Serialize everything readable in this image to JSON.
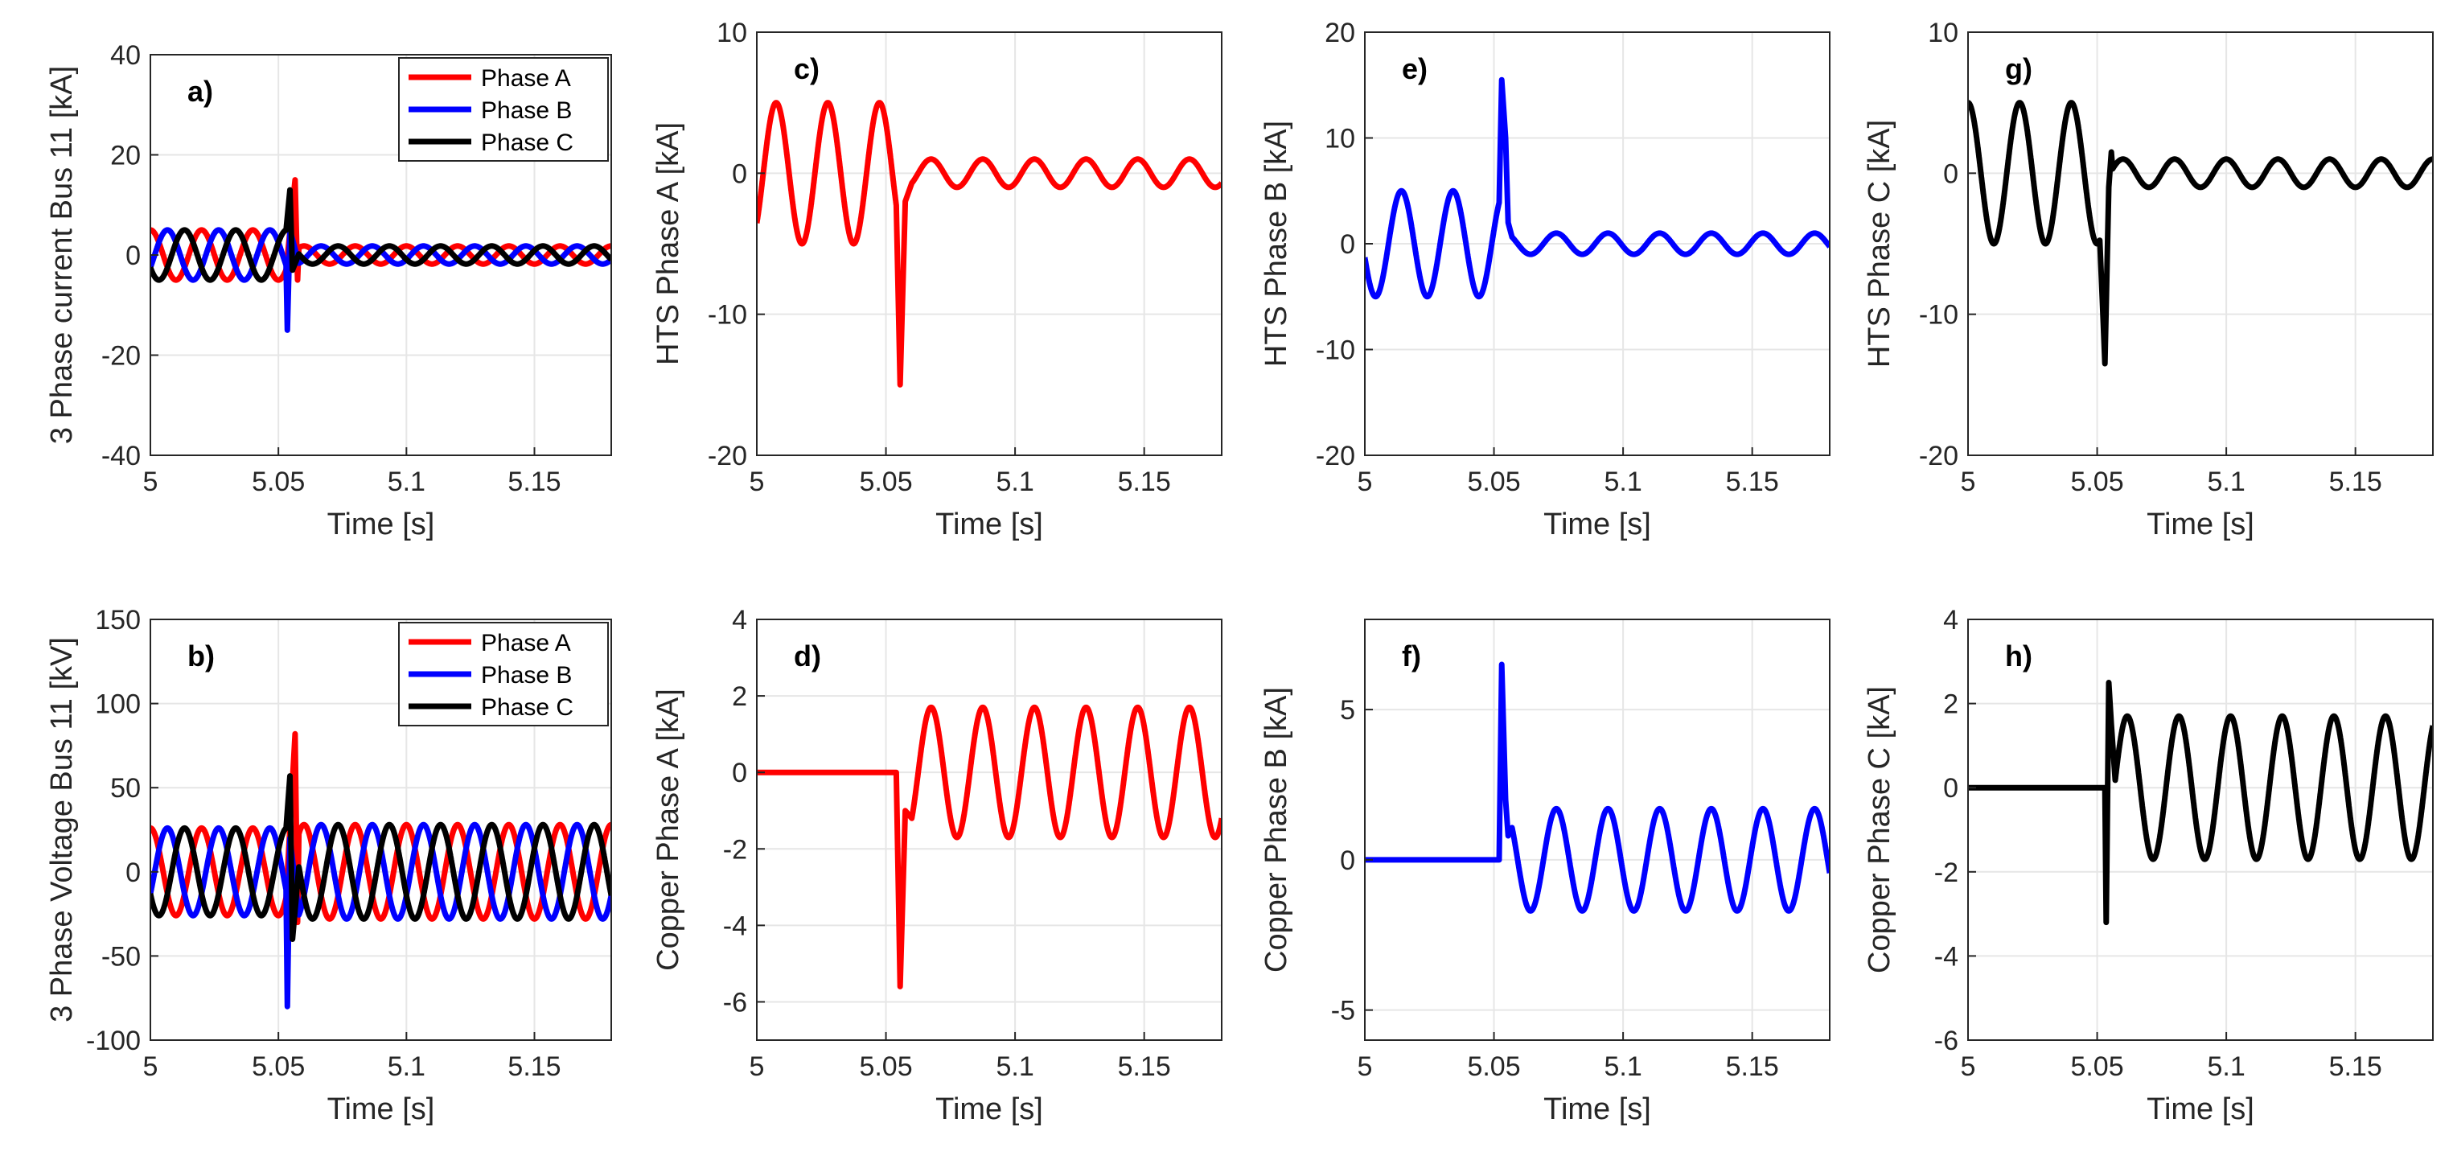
{
  "figure": {
    "background": "#ffffff",
    "colors": {
      "phase_a": "#ff0000",
      "phase_b": "#0000ff",
      "phase_c": "#000000",
      "grid": "#e6e6e6",
      "axis": "#262626"
    }
  },
  "chart_data": [
    {
      "id": "a",
      "type": "line",
      "panel_label": "a)",
      "xlabel": "Time [s]",
      "ylabel": "3 Phase current Bus 11 [kA]",
      "xlim": [
        5,
        5.18
      ],
      "ylim": [
        -40,
        40
      ],
      "xticks": [
        5,
        5.05,
        5.1,
        5.15
      ],
      "xtick_labels": [
        "5",
        "5.05",
        "5.1",
        "5.15"
      ],
      "yticks": [
        -40,
        -20,
        0,
        20,
        40
      ],
      "ytick_labels": [
        "-40",
        "-20",
        "0",
        "20",
        "40"
      ],
      "grid": true,
      "legend": "top-right",
      "series": [
        {
          "name": "Phase A",
          "color": "#ff0000",
          "fault_start": 5.053,
          "fault_end": 5.058,
          "pre_amp": 5,
          "post_amp": 1.8,
          "phase_deg": 90,
          "spikes": [
            [
              5.0565,
              15
            ],
            [
              5.0575,
              -5
            ]
          ]
        },
        {
          "name": "Phase B",
          "color": "#0000ff",
          "fault_start": 5.053,
          "fault_end": 5.058,
          "pre_amp": 5,
          "post_amp": 1.8,
          "phase_deg": -30,
          "spikes": [
            [
              5.0535,
              -15
            ],
            [
              5.0545,
              5
            ]
          ]
        },
        {
          "name": "Phase C",
          "color": "#000000",
          "fault_start": 5.053,
          "fault_end": 5.058,
          "pre_amp": 5,
          "post_amp": 1.8,
          "phase_deg": 210,
          "spikes": [
            [
              5.0545,
              13
            ],
            [
              5.0555,
              -3
            ]
          ]
        }
      ]
    },
    {
      "id": "b",
      "type": "line",
      "panel_label": "b)",
      "xlabel": "Time [s]",
      "ylabel": "3 Phase Voltage  Bus 11 [kV]",
      "xlim": [
        5,
        5.18
      ],
      "ylim": [
        -100,
        150
      ],
      "xticks": [
        5,
        5.05,
        5.1,
        5.15
      ],
      "xtick_labels": [
        "5",
        "5.05",
        "5.1",
        "5.15"
      ],
      "yticks": [
        -100,
        -50,
        0,
        50,
        100,
        150
      ],
      "ytick_labels": [
        "-100",
        "-50",
        "0",
        "50",
        "100",
        "150"
      ],
      "grid": true,
      "legend": "top-right",
      "series": [
        {
          "name": "Phase A",
          "color": "#ff0000",
          "fault_start": 5.053,
          "fault_end": 5.058,
          "pre_amp": 26,
          "post_amp": 28,
          "phase_deg": 90,
          "spikes": [
            [
              5.0565,
              82
            ],
            [
              5.0575,
              -30
            ]
          ]
        },
        {
          "name": "Phase B",
          "color": "#0000ff",
          "fault_start": 5.053,
          "fault_end": 5.058,
          "pre_amp": 26,
          "post_amp": 28,
          "phase_deg": -30,
          "spikes": [
            [
              5.0535,
              -80
            ],
            [
              5.0545,
              20
            ]
          ]
        },
        {
          "name": "Phase C",
          "color": "#000000",
          "fault_start": 5.053,
          "fault_end": 5.058,
          "pre_amp": 26,
          "post_amp": 28,
          "phase_deg": 210,
          "spikes": [
            [
              5.0545,
              57
            ],
            [
              5.0555,
              -40
            ]
          ]
        }
      ]
    },
    {
      "id": "c",
      "type": "line",
      "panel_label": "c)",
      "xlabel": "Time [s]",
      "ylabel": "HTS Phase A [kA]",
      "xlim": [
        5,
        5.18
      ],
      "ylim": [
        -20,
        10
      ],
      "xticks": [
        5,
        5.05,
        5.1,
        5.15
      ],
      "xtick_labels": [
        "5",
        "5.05",
        "5.1",
        "5.15"
      ],
      "yticks": [
        -20,
        -10,
        0,
        10
      ],
      "ytick_labels": [
        "-20",
        "-10",
        "0",
        "10"
      ],
      "grid": true,
      "series": [
        {
          "name": "",
          "color": "#ff0000",
          "fault_start": 5.054,
          "fault_end": 5.06,
          "pre_amp": 5,
          "post_amp": 1,
          "phase_deg": -45,
          "spikes": [
            [
              5.0555,
              -15
            ],
            [
              5.0575,
              -2
            ]
          ]
        }
      ]
    },
    {
      "id": "d",
      "type": "line",
      "panel_label": "d)",
      "xlabel": "Time [s]",
      "ylabel": "Copper Phase A [kA]",
      "xlim": [
        5,
        5.18
      ],
      "ylim": [
        -7,
        4
      ],
      "xticks": [
        5,
        5.05,
        5.1,
        5.15
      ],
      "xtick_labels": [
        "5",
        "5.05",
        "5.1",
        "5.15"
      ],
      "yticks": [
        -6,
        -4,
        -2,
        0,
        2,
        4
      ],
      "ytick_labels": [
        "-6",
        "-4",
        "-2",
        "0",
        "2",
        "4"
      ],
      "grid": true,
      "series": [
        {
          "name": "",
          "color": "#ff0000",
          "fault_start": 5.054,
          "fault_end": 5.06,
          "pre_amp": 0,
          "post_amp": 1.7,
          "phase_deg": -45,
          "spikes": [
            [
              5.0555,
              -5.6
            ],
            [
              5.0575,
              -1
            ]
          ]
        }
      ]
    },
    {
      "id": "e",
      "type": "line",
      "panel_label": "e)",
      "xlabel": "Time [s]",
      "ylabel": "HTS Phase B [kA]",
      "xlim": [
        5,
        5.18
      ],
      "ylim": [
        -20,
        20
      ],
      "xticks": [
        5,
        5.05,
        5.1,
        5.15
      ],
      "xtick_labels": [
        "5",
        "5.05",
        "5.1",
        "5.15"
      ],
      "yticks": [
        -20,
        -10,
        0,
        10,
        20
      ],
      "ytick_labels": [
        "-20",
        "-10",
        "0",
        "10",
        "20"
      ],
      "grid": true,
      "series": [
        {
          "name": "",
          "color": "#0000ff",
          "fault_start": 5.052,
          "fault_end": 5.057,
          "pre_amp": 5,
          "post_amp": 1,
          "phase_deg": -165,
          "spikes": [
            [
              5.053,
              15.5
            ],
            [
              5.0545,
              10
            ],
            [
              5.0555,
              2
            ]
          ]
        }
      ]
    },
    {
      "id": "f",
      "type": "line",
      "panel_label": "f)",
      "xlabel": "Time [s]",
      "ylabel": "Copper Phase B [kA]",
      "xlim": [
        5,
        5.18
      ],
      "ylim": [
        -6,
        8
      ],
      "xticks": [
        5,
        5.05,
        5.1,
        5.15
      ],
      "xtick_labels": [
        "5",
        "5.05",
        "5.1",
        "5.15"
      ],
      "yticks": [
        -5,
        0,
        5
      ],
      "ytick_labels": [
        "-5",
        "0",
        "5"
      ],
      "grid": true,
      "series": [
        {
          "name": "",
          "color": "#0000ff",
          "fault_start": 5.052,
          "fault_end": 5.057,
          "pre_amp": 0,
          "post_amp": 1.7,
          "phase_deg": -165,
          "spikes": [
            [
              5.053,
              6.5
            ],
            [
              5.0545,
              2
            ],
            [
              5.0555,
              0.8
            ]
          ]
        }
      ]
    },
    {
      "id": "g",
      "type": "line",
      "panel_label": "g)",
      "xlabel": "Time [s]",
      "ylabel": "HTS Phase C [kA]",
      "xlim": [
        5,
        5.18
      ],
      "ylim": [
        -20,
        10
      ],
      "xticks": [
        5,
        5.05,
        5.1,
        5.15
      ],
      "xtick_labels": [
        "5",
        "5.05",
        "5.1",
        "5.15"
      ],
      "yticks": [
        -20,
        -10,
        0,
        10
      ],
      "ytick_labels": [
        "-20",
        "-10",
        "0",
        "10"
      ],
      "grid": true,
      "series": [
        {
          "name": "",
          "color": "#000000",
          "fault_start": 5.051,
          "fault_end": 5.056,
          "pre_amp": 5,
          "post_amp": 1,
          "phase_deg": 90,
          "spikes": [
            [
              5.052,
              -9
            ],
            [
              5.053,
              -13.5
            ],
            [
              5.0545,
              -1
            ],
            [
              5.0555,
              1.5
            ]
          ]
        }
      ]
    },
    {
      "id": "h",
      "type": "line",
      "panel_label": "h)",
      "xlabel": "Time [s]",
      "ylabel": "Copper Phase C [kA]",
      "xlim": [
        5,
        5.18
      ],
      "ylim": [
        -6,
        4
      ],
      "xticks": [
        5,
        5.05,
        5.1,
        5.15
      ],
      "xtick_labels": [
        "5",
        "5.05",
        "5.1",
        "5.15"
      ],
      "yticks": [
        -6,
        -4,
        -2,
        0,
        2,
        4
      ],
      "ytick_labels": [
        "-6",
        "-4",
        "-2",
        "0",
        "2",
        "4"
      ],
      "grid": true,
      "series": [
        {
          "name": "",
          "color": "#000000",
          "fault_start": 5.053,
          "fault_end": 5.057,
          "pre_amp": 0,
          "post_amp": 1.7,
          "phase_deg": 60,
          "spikes": [
            [
              5.0535,
              -3.2
            ],
            [
              5.0545,
              2.5
            ],
            [
              5.0555,
              1.5
            ]
          ]
        }
      ]
    }
  ]
}
